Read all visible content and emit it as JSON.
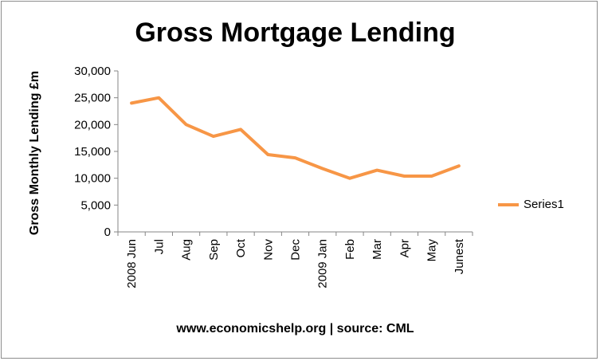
{
  "chart_data": {
    "type": "line",
    "title": "Gross Mortgage Lending",
    "ylabel": "Gross Monthly Lending £m",
    "xlabel": "www.economicshelp.org | source: CML",
    "categories": [
      "2008 Jun",
      "Jul",
      "Aug",
      "Sep",
      "Oct",
      "Nov",
      "Dec",
      "2009 Jan",
      "Feb",
      "Mar",
      "Apr",
      "May",
      "Junest"
    ],
    "series": [
      {
        "name": "Series1",
        "values": [
          24000,
          25000,
          20000,
          17800,
          19100,
          14400,
          13800,
          11800,
          10000,
          11500,
          10400,
          10400,
          12300
        ],
        "color": "#f79646"
      }
    ],
    "ylim": [
      0,
      30000
    ],
    "yticks": [
      "0",
      "5,000",
      "10,000",
      "15,000",
      "20,000",
      "25,000",
      "30,000"
    ],
    "grid": false,
    "legend_position": "right"
  }
}
